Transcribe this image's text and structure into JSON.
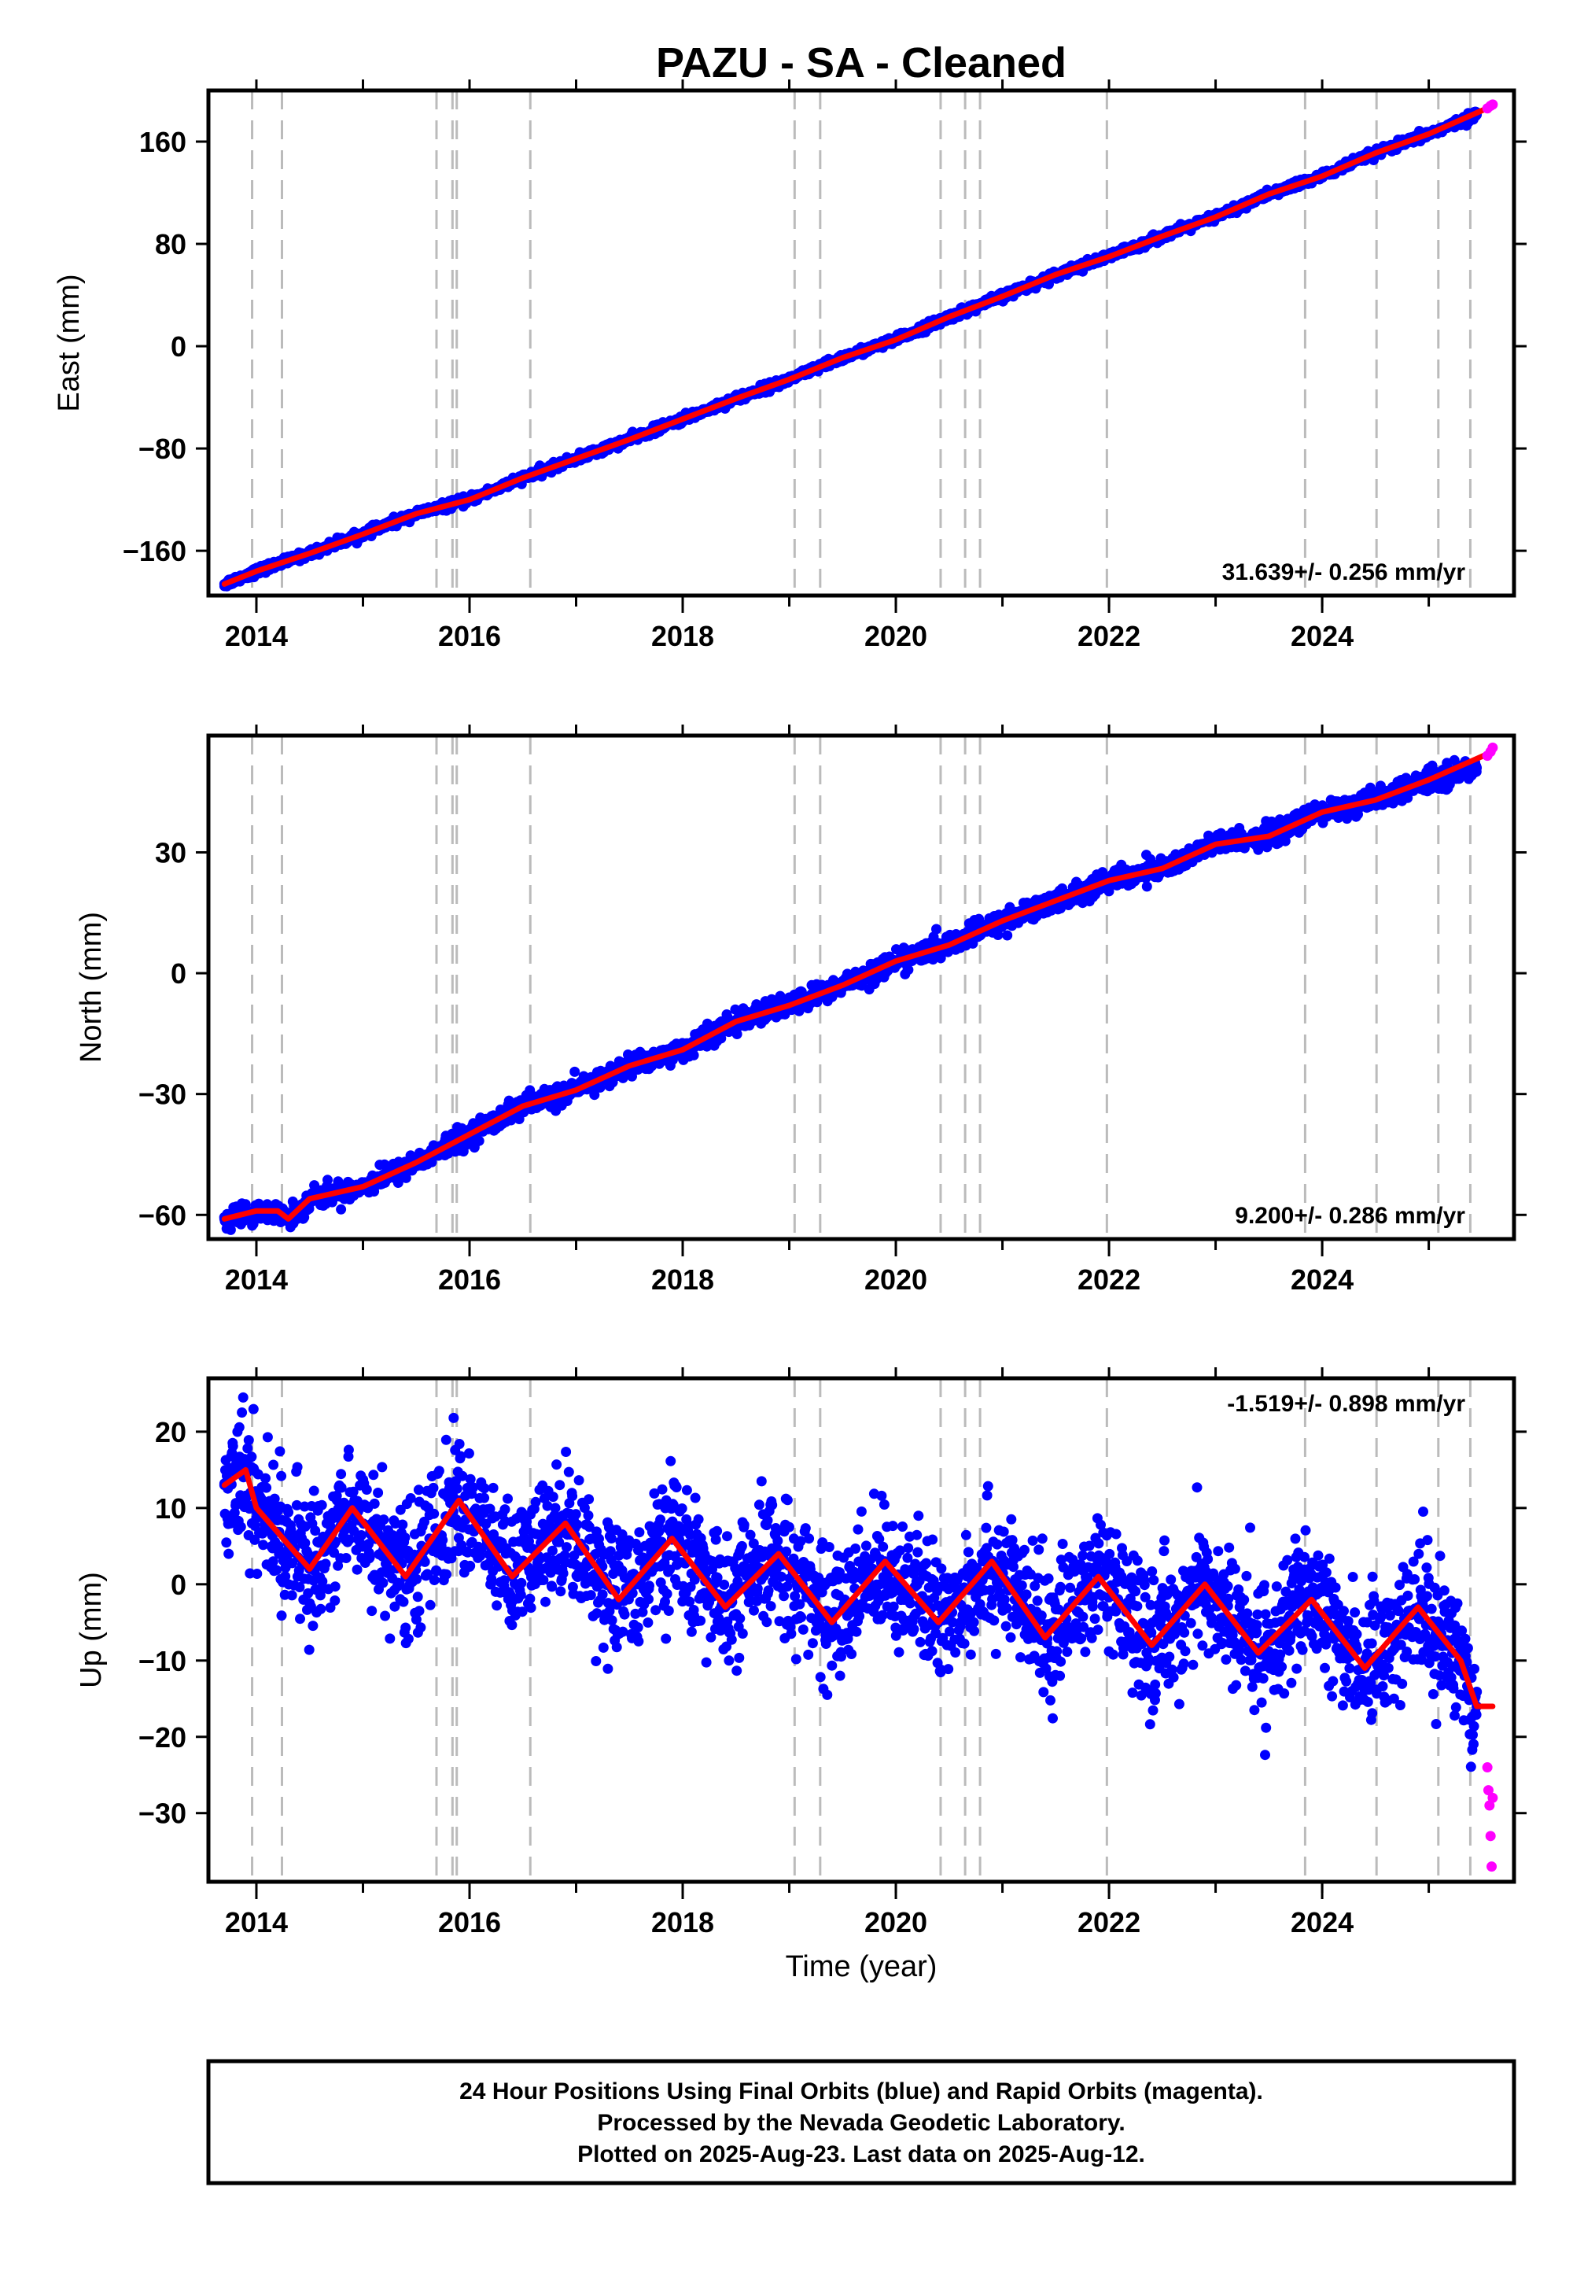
{
  "title": "PAZU  - SA - Cleaned",
  "x_label": "Time (year)",
  "footer": {
    "line1": "24 Hour Positions Using Final Orbits (blue) and Rapid Orbits (magenta).",
    "line2": "Processed by the Nevada Geodetic Laboratory.",
    "line3": "Plotted on 2025-Aug-23. Last data on 2025-Aug-12."
  },
  "colors": {
    "final_orbits": "#0000ff",
    "rapid_orbits": "#ff00ff",
    "model_fit": "#ff0000",
    "event_lines": "#bbbbbb",
    "frame": "#000000"
  },
  "chart_data": [
    {
      "type": "scatter",
      "id": "east",
      "ylabel": "East (mm)",
      "rate_text": "31.639+/- 0.256 mm/yr",
      "xlim": [
        2013.55,
        2025.8
      ],
      "ylim": [
        -195,
        200
      ],
      "x_ticks": [
        2014,
        2016,
        2018,
        2020,
        2022,
        2024
      ],
      "y_ticks": [
        -160,
        -80,
        0,
        80,
        160
      ],
      "event_lines": [
        2013.96,
        2014.24,
        2015.69,
        2015.84,
        2015.88,
        2016.57,
        2019.05,
        2019.29,
        2020.42,
        2020.65,
        2020.79,
        2021.98,
        2023.84,
        2024.51,
        2025.09,
        2025.39
      ],
      "series": [
        {
          "name": "Final Orbits",
          "color": "#0000ff",
          "x": [
            2013.7,
            2014.0,
            2014.5,
            2015.0,
            2015.5,
            2016.0,
            2016.5,
            2017.0,
            2017.5,
            2018.0,
            2018.5,
            2019.0,
            2019.5,
            2020.0,
            2020.5,
            2021.0,
            2021.5,
            2022.0,
            2022.5,
            2023.0,
            2023.5,
            2024.0,
            2024.5,
            2025.0,
            2025.45
          ],
          "y": [
            -186,
            -176,
            -162,
            -147,
            -131,
            -120,
            -103,
            -88,
            -73,
            -57,
            -41,
            -26,
            -9,
            5,
            23,
            39,
            56,
            70,
            86,
            101,
            119,
            133,
            151,
            166,
            181
          ]
        },
        {
          "name": "Rapid Orbits",
          "color": "#ff00ff",
          "x": [
            2025.55,
            2025.58,
            2025.6
          ],
          "y": [
            186,
            188,
            189
          ]
        },
        {
          "name": "Model",
          "color": "#ff0000",
          "x": [
            2013.7,
            2014.0,
            2014.5,
            2015.0,
            2015.5,
            2016.0,
            2016.5,
            2017.0,
            2017.5,
            2018.0,
            2018.5,
            2019.0,
            2019.5,
            2020.0,
            2020.5,
            2021.0,
            2021.5,
            2022.0,
            2022.5,
            2023.0,
            2023.5,
            2024.0,
            2024.5,
            2025.0,
            2025.6
          ],
          "y": [
            -186,
            -176,
            -162,
            -147,
            -131,
            -120,
            -103,
            -88,
            -73,
            -57,
            -41,
            -26,
            -9,
            5,
            23,
            39,
            56,
            70,
            86,
            101,
            119,
            133,
            151,
            166,
            188
          ]
        }
      ]
    },
    {
      "type": "scatter",
      "id": "north",
      "ylabel": "North (mm)",
      "rate_text": "9.200+/- 0.286 mm/yr",
      "xlim": [
        2013.55,
        2025.8
      ],
      "ylim": [
        -66,
        59
      ],
      "x_ticks": [
        2014,
        2016,
        2018,
        2020,
        2022,
        2024
      ],
      "y_ticks": [
        -60,
        -30,
        0,
        30
      ],
      "event_lines": [
        2013.96,
        2014.24,
        2015.69,
        2015.84,
        2015.88,
        2016.57,
        2019.05,
        2019.29,
        2020.42,
        2020.65,
        2020.79,
        2021.98,
        2023.84,
        2024.51,
        2025.09,
        2025.39
      ],
      "series": [
        {
          "name": "Final Orbits",
          "color": "#0000ff",
          "x": [
            2013.7,
            2014.0,
            2014.2,
            2014.3,
            2014.5,
            2015.0,
            2015.5,
            2016.0,
            2016.5,
            2017.0,
            2017.5,
            2018.0,
            2018.5,
            2019.0,
            2019.5,
            2020.0,
            2020.5,
            2021.0,
            2021.5,
            2022.0,
            2022.5,
            2023.0,
            2023.5,
            2024.0,
            2024.5,
            2025.0,
            2025.45
          ],
          "y": [
            -61,
            -59,
            -59,
            -61,
            -56,
            -53,
            -47,
            -40,
            -33,
            -29,
            -23,
            -19,
            -12,
            -8,
            -3,
            3,
            7,
            13,
            18,
            23,
            26,
            32,
            34,
            40,
            43,
            48,
            51
          ]
        },
        {
          "name": "Rapid Orbits",
          "color": "#ff00ff",
          "x": [
            2025.55,
            2025.58,
            2025.6
          ],
          "y": [
            54,
            55,
            56
          ]
        },
        {
          "name": "Model",
          "color": "#ff0000",
          "x": [
            2013.7,
            2014.0,
            2014.2,
            2014.3,
            2014.5,
            2015.0,
            2015.5,
            2016.0,
            2016.5,
            2017.0,
            2017.5,
            2018.0,
            2018.5,
            2019.0,
            2019.5,
            2020.0,
            2020.5,
            2021.0,
            2021.5,
            2022.0,
            2022.5,
            2023.0,
            2023.5,
            2024.0,
            2024.5,
            2025.0,
            2025.6
          ],
          "y": [
            -61,
            -59,
            -59,
            -61,
            -56,
            -53,
            -47,
            -40,
            -33,
            -29,
            -23,
            -19,
            -12,
            -8,
            -3,
            3,
            7,
            13,
            18,
            23,
            26,
            32,
            34,
            40,
            43,
            48,
            55
          ]
        }
      ]
    },
    {
      "type": "scatter",
      "id": "up",
      "ylabel": "Up (mm)",
      "rate_text": "-1.519+/- 0.898 mm/yr",
      "xlim": [
        2013.55,
        2025.8
      ],
      "ylim": [
        -39,
        27
      ],
      "x_ticks": [
        2014,
        2016,
        2018,
        2020,
        2022,
        2024
      ],
      "y_ticks": [
        -30,
        -20,
        -10,
        0,
        10,
        20
      ],
      "event_lines": [
        2013.96,
        2014.24,
        2015.69,
        2015.84,
        2015.88,
        2016.57,
        2019.05,
        2019.29,
        2020.42,
        2020.65,
        2020.79,
        2021.98,
        2023.84,
        2024.51,
        2025.09,
        2025.39
      ],
      "series": [
        {
          "name": "Final Orbits",
          "color": "#0000ff",
          "x": [
            2013.7,
            2013.9,
            2014.0,
            2014.5,
            2014.9,
            2015.4,
            2015.9,
            2016.4,
            2016.9,
            2017.4,
            2017.9,
            2018.4,
            2018.9,
            2019.4,
            2019.9,
            2020.4,
            2020.9,
            2021.4,
            2021.9,
            2022.4,
            2022.9,
            2023.4,
            2023.9,
            2024.4,
            2024.9,
            2025.3,
            2025.45
          ],
          "y": [
            13,
            15,
            10,
            2,
            10,
            1,
            11,
            1,
            8,
            -2,
            6,
            -3,
            4,
            -5,
            3,
            -5,
            3,
            -7,
            1,
            -8,
            0,
            -9,
            -2,
            -11,
            -3,
            -10,
            -16
          ]
        },
        {
          "name": "Rapid Orbits",
          "color": "#ff00ff",
          "x": [
            2025.55,
            2025.56,
            2025.57,
            2025.58,
            2025.59,
            2025.6
          ],
          "y": [
            -24,
            -27,
            -29,
            -33,
            -37,
            -28
          ]
        },
        {
          "name": "Model",
          "color": "#ff0000",
          "x": [
            2013.7,
            2013.9,
            2014.0,
            2014.5,
            2014.9,
            2015.4,
            2015.9,
            2016.4,
            2016.9,
            2017.4,
            2017.9,
            2018.4,
            2018.9,
            2019.4,
            2019.9,
            2020.4,
            2020.9,
            2021.4,
            2021.9,
            2022.4,
            2022.9,
            2023.4,
            2023.9,
            2024.4,
            2024.9,
            2025.3,
            2025.45,
            2025.6
          ],
          "y": [
            13,
            15,
            10,
            2,
            10,
            1,
            11,
            1,
            8,
            -2,
            6,
            -3,
            4,
            -5,
            3,
            -5,
            3,
            -7,
            1,
            -8,
            0,
            -9,
            -2,
            -11,
            -3,
            -10,
            -16,
            -16
          ]
        }
      ]
    }
  ]
}
